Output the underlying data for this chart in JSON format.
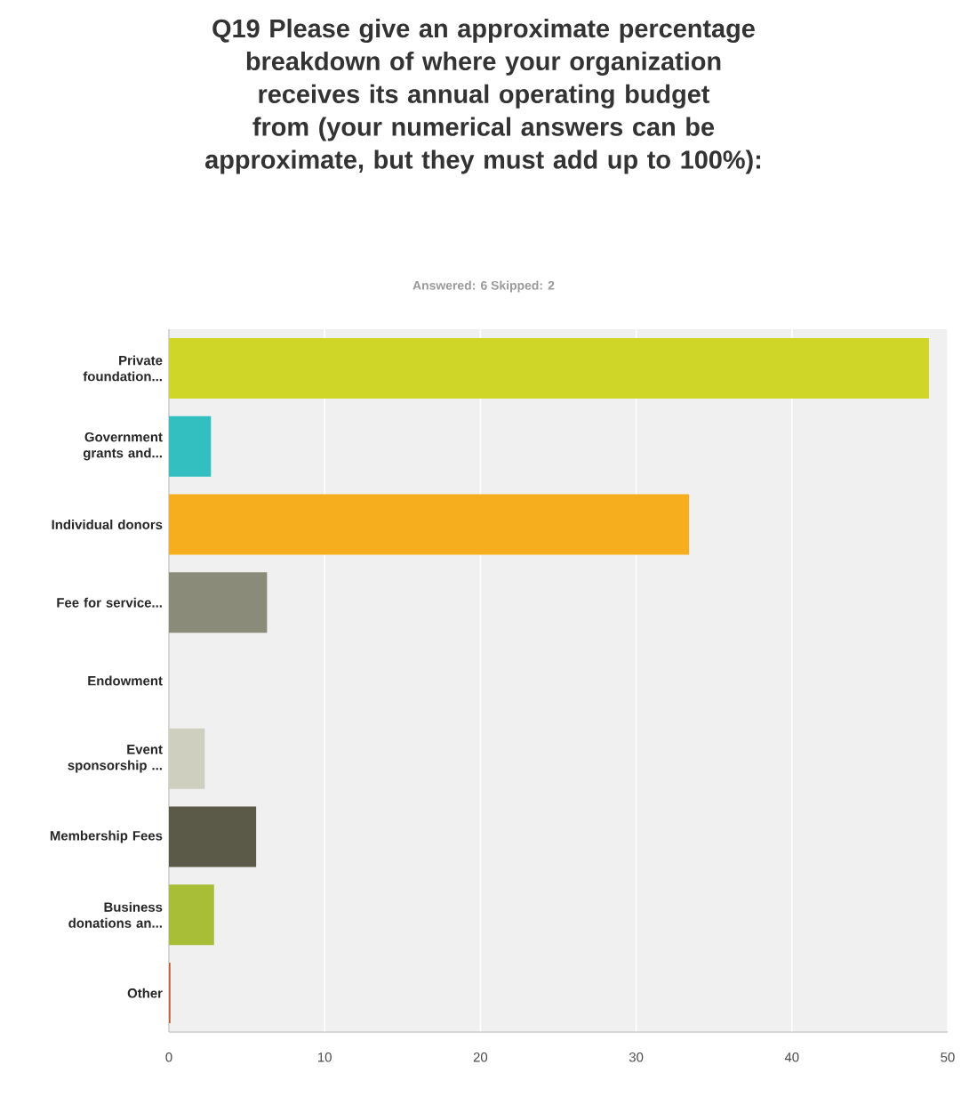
{
  "chart_data": {
    "type": "bar",
    "orientation": "horizontal",
    "title": "Q19 Please give an approximate percentage breakdown of where your organization receives its annual operating budget from (your numerical answers can be approximate, but they must add up to 100%):",
    "subtitle": "Answered: 6    Skipped: 2",
    "categories": [
      "Private foundation...",
      "Government grants and...",
      "Individual donors",
      "Fee for service...",
      "Endowment",
      "Event sponsorship ...",
      "Membership Fees",
      "Business donations an...",
      "Other"
    ],
    "values": [
      48.8,
      2.7,
      33.4,
      6.3,
      0,
      2.3,
      5.6,
      2.9,
      0.1
    ],
    "colors": [
      "#cfd628",
      "#33bfbf",
      "#f6ae1e",
      "#8a8b78",
      "#a0a0a0",
      "#cfcfbf",
      "#5b5a48",
      "#a8be36",
      "#d0592c"
    ],
    "xlim": [
      0,
      50
    ],
    "xticks": [
      0,
      10,
      20,
      30,
      40,
      50
    ],
    "grid": "x"
  }
}
